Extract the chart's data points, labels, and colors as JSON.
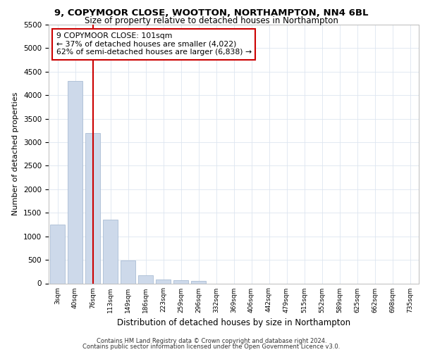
{
  "title_line1": "9, COPYMOOR CLOSE, WOOTTON, NORTHAMPTON, NN4 6BL",
  "title_line2": "Size of property relative to detached houses in Northampton",
  "xlabel": "Distribution of detached houses by size in Northampton",
  "ylabel": "Number of detached properties",
  "bar_color": "#cdd9ea",
  "bar_edge_color": "#aabdd4",
  "vline_x": 2,
  "vline_color": "#cc0000",
  "annotation_title": "9 COPYMOOR CLOSE: 101sqm",
  "annotation_line2": "← 37% of detached houses are smaller (4,022)",
  "annotation_line3": "62% of semi-detached houses are larger (6,838) →",
  "annotation_box_color": "#ffffff",
  "annotation_box_edge": "#cc0000",
  "categories": [
    "3sqm",
    "40sqm",
    "76sqm",
    "113sqm",
    "149sqm",
    "186sqm",
    "223sqm",
    "259sqm",
    "296sqm",
    "332sqm",
    "369sqm",
    "406sqm",
    "442sqm",
    "479sqm",
    "515sqm",
    "552sqm",
    "589sqm",
    "625sqm",
    "662sqm",
    "698sqm",
    "735sqm"
  ],
  "bar_heights": [
    1250,
    4300,
    3200,
    1350,
    490,
    170,
    80,
    60,
    45,
    0,
    0,
    0,
    0,
    0,
    0,
    0,
    0,
    0,
    0,
    0,
    0
  ],
  "ylim": [
    0,
    5500
  ],
  "yticks": [
    0,
    500,
    1000,
    1500,
    2000,
    2500,
    3000,
    3500,
    4000,
    4500,
    5000,
    5500
  ],
  "background_color": "#ffffff",
  "grid_color": "#dde5f0",
  "footer_line1": "Contains HM Land Registry data © Crown copyright and database right 2024.",
  "footer_line2": "Contains public sector information licensed under the Open Government Licence v3.0."
}
